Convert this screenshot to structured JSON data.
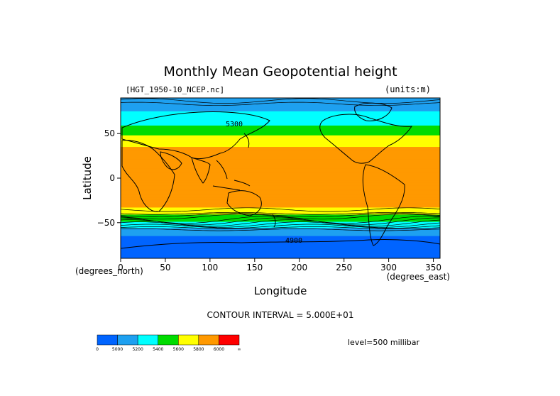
{
  "chart_data": {
    "type": "heatmap",
    "title": "Monthly Mean Geopotential height",
    "file_label": "[HGT_1950-10_NCEP.nc]",
    "units_label": "(units:m)",
    "xlabel": "Longitude",
    "ylabel": "Latitude",
    "x_unit_label": "(degrees_east)",
    "y_unit_label": "(degrees_north)",
    "xlim": [
      0,
      357.5
    ],
    "ylim": [
      -90,
      90
    ],
    "x_ticks": [
      0,
      50,
      100,
      150,
      200,
      250,
      300,
      350
    ],
    "y_ticks": [
      -50,
      0,
      50
    ],
    "y_tick_labels": [
      "−50",
      "0",
      "50"
    ],
    "contour_interval_text": "CONTOUR INTERVAL = 5.000E+01",
    "level_text": "level=500 millibar",
    "contour_labels": [
      "5300",
      "4900"
    ],
    "colorbar": {
      "ticks": [
        "0",
        "5000",
        "5200",
        "5400",
        "5600",
        "5800",
        "6000",
        "∞"
      ],
      "colors": [
        "#0064ff",
        "#1ea0f0",
        "#00ffff",
        "#00dc00",
        "#ffff00",
        "#ff9900",
        "#ff0000"
      ]
    },
    "field_zonal_profile": {
      "latitudes": [
        90,
        80,
        70,
        62,
        55,
        50,
        45,
        40,
        30,
        20,
        0,
        -20,
        -30,
        -35,
        -40,
        -45,
        -50,
        -55,
        -60,
        -65,
        -70,
        -80,
        -90
      ],
      "heights_m": [
        5000,
        5150,
        5250,
        5350,
        5450,
        5550,
        5650,
        5750,
        5850,
        5880,
        5890,
        5880,
        5840,
        5760,
        5640,
        5500,
        5360,
        5220,
        5100,
        5000,
        4950,
        4930,
        4920
      ]
    }
  }
}
